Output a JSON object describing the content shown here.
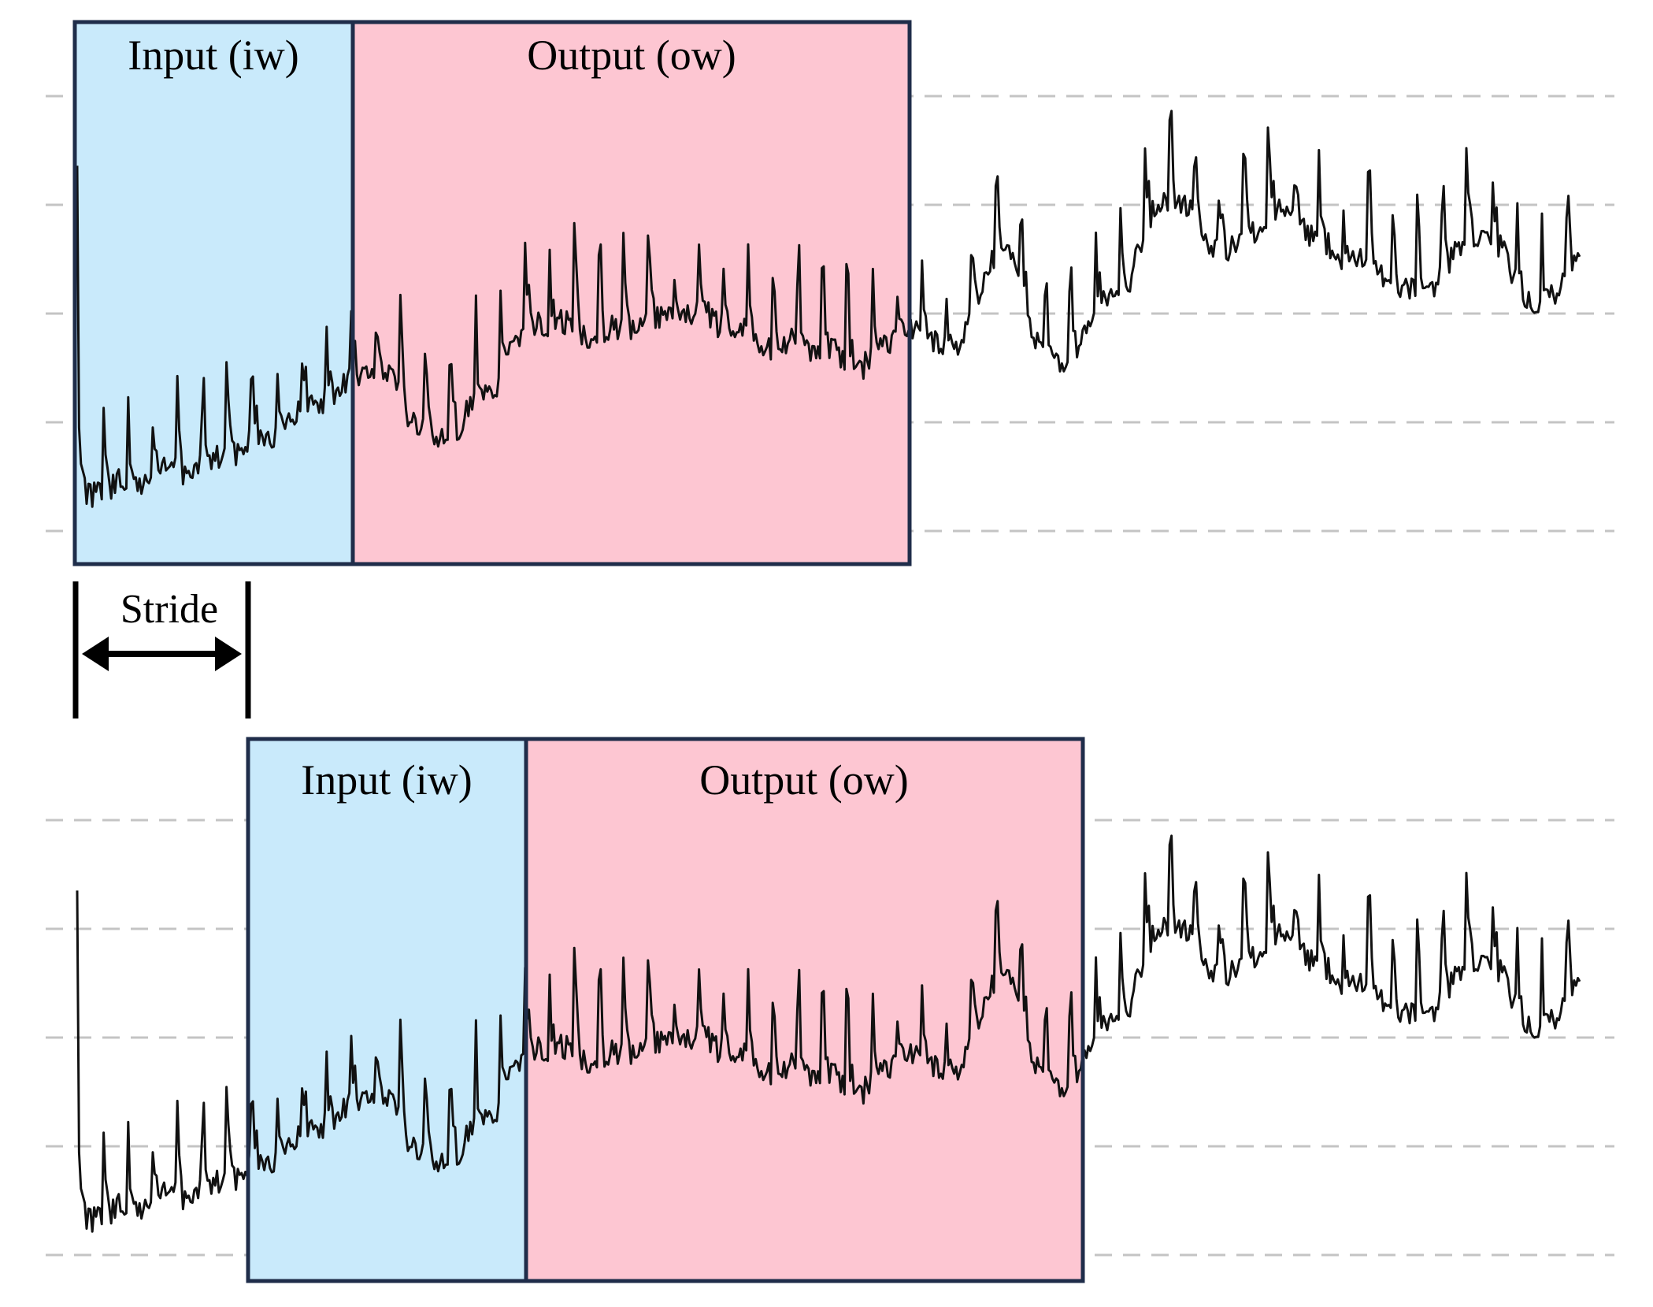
{
  "colors": {
    "input_fill": "#c9eafb",
    "output_fill": "#fdc6d2",
    "frame": "#1f2d4a",
    "signal": "#111111",
    "gridline": "#c4c4c4"
  },
  "panels": [
    {
      "input_label": "Input (iw)",
      "output_label": "Output (ow)"
    },
    {
      "input_label": "Input (iw)",
      "output_label": "Output (ow)"
    }
  ],
  "stride": {
    "label": "Stride"
  }
}
